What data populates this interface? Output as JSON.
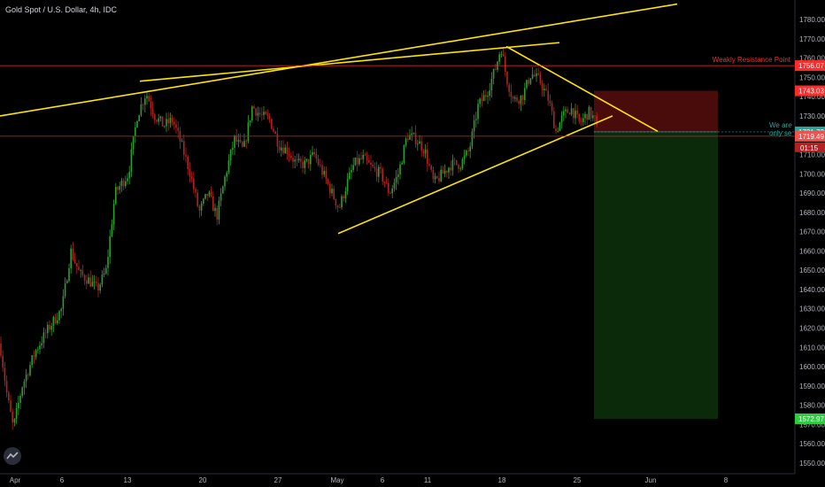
{
  "header": {
    "title": "Gold Spot / U.S. Dollar, 4h, IDC"
  },
  "colors": {
    "bull": "#26a69a",
    "bear": "#ef5350",
    "candle_up": "#2ca02c",
    "candle_down": "#b22222",
    "trendline": "#ffe600",
    "resistance": "#ff2a2a",
    "stop_zone": "#4a0b0b",
    "target_zone": "#0a2a0a"
  },
  "chart_data": {
    "type": "candlestick",
    "symbol": "Gold Spot / U.S. Dollar",
    "interval": "4h",
    "source": "IDC",
    "x_ticks": [
      "Apr",
      "6",
      "13",
      "20",
      "27",
      "May",
      "6",
      "11",
      "18",
      "25",
      "Jun",
      "8"
    ],
    "y_ticks": [
      1550,
      1560,
      1570,
      1580,
      1590,
      1600,
      1610,
      1620,
      1630,
      1640,
      1650,
      1660,
      1670,
      1680,
      1690,
      1700,
      1710,
      1720,
      1730,
      1740,
      1750,
      1760,
      1770,
      1780
    ],
    "ylim": [
      1546,
      1788
    ],
    "price_path": [
      [
        0,
        1612
      ],
      [
        8,
        1585
      ],
      [
        15,
        1568
      ],
      [
        25,
        1590
      ],
      [
        40,
        1608
      ],
      [
        55,
        1620
      ],
      [
        70,
        1630
      ],
      [
        80,
        1660
      ],
      [
        90,
        1648
      ],
      [
        100,
        1645
      ],
      [
        110,
        1640
      ],
      [
        120,
        1650
      ],
      [
        130,
        1690
      ],
      [
        145,
        1700
      ],
      [
        155,
        1730
      ],
      [
        165,
        1742
      ],
      [
        175,
        1730
      ],
      [
        185,
        1725
      ],
      [
        195,
        1728
      ],
      [
        205,
        1715
      ],
      [
        215,
        1700
      ],
      [
        225,
        1680
      ],
      [
        235,
        1690
      ],
      [
        245,
        1678
      ],
      [
        255,
        1700
      ],
      [
        265,
        1718
      ],
      [
        275,
        1712
      ],
      [
        285,
        1735
      ],
      [
        295,
        1730
      ],
      [
        305,
        1728
      ],
      [
        315,
        1715
      ],
      [
        325,
        1712
      ],
      [
        335,
        1705
      ],
      [
        345,
        1705
      ],
      [
        355,
        1710
      ],
      [
        365,
        1700
      ],
      [
        375,
        1690
      ],
      [
        383,
        1682
      ],
      [
        392,
        1695
      ],
      [
        400,
        1705
      ],
      [
        410,
        1708
      ],
      [
        420,
        1703
      ],
      [
        430,
        1700
      ],
      [
        440,
        1690
      ],
      [
        450,
        1700
      ],
      [
        460,
        1720
      ],
      [
        470,
        1718
      ],
      [
        480,
        1712
      ],
      [
        490,
        1695
      ],
      [
        500,
        1700
      ],
      [
        510,
        1705
      ],
      [
        520,
        1705
      ],
      [
        530,
        1712
      ],
      [
        540,
        1735
      ],
      [
        550,
        1742
      ],
      [
        560,
        1755
      ],
      [
        566,
        1766
      ],
      [
        572,
        1750
      ],
      [
        580,
        1738
      ],
      [
        590,
        1740
      ],
      [
        600,
        1752
      ],
      [
        610,
        1748
      ],
      [
        620,
        1738
      ],
      [
        628,
        1722
      ],
      [
        636,
        1730
      ],
      [
        645,
        1734
      ],
      [
        655,
        1726
      ],
      [
        665,
        1732
      ],
      [
        672,
        1728
      ],
      [
        676,
        1719
      ]
    ],
    "annotations": {
      "resistance_label": "Weakly Resistance Point",
      "note_text": "We are only se",
      "countdown": "01:15"
    },
    "levels": [
      {
        "name": "resistance",
        "value": 1756.07,
        "label": "1756.07",
        "color": "#ff2a2a"
      },
      {
        "name": "entry-upper",
        "value": 1743.03,
        "label": "1743.03",
        "color": "#ff2a2a"
      },
      {
        "name": "current",
        "value": 1721.73,
        "label": "1721.73",
        "color": "#26a69a"
      },
      {
        "name": "last",
        "value": 1719.49,
        "label": "1719.49",
        "color": "#ef5350"
      },
      {
        "name": "target",
        "value": 1572.97,
        "label": "1572.97",
        "color": "#2ecc40"
      }
    ],
    "position": {
      "stop": 1743.03,
      "entry": 1721.73,
      "target": 1572.97
    }
  }
}
